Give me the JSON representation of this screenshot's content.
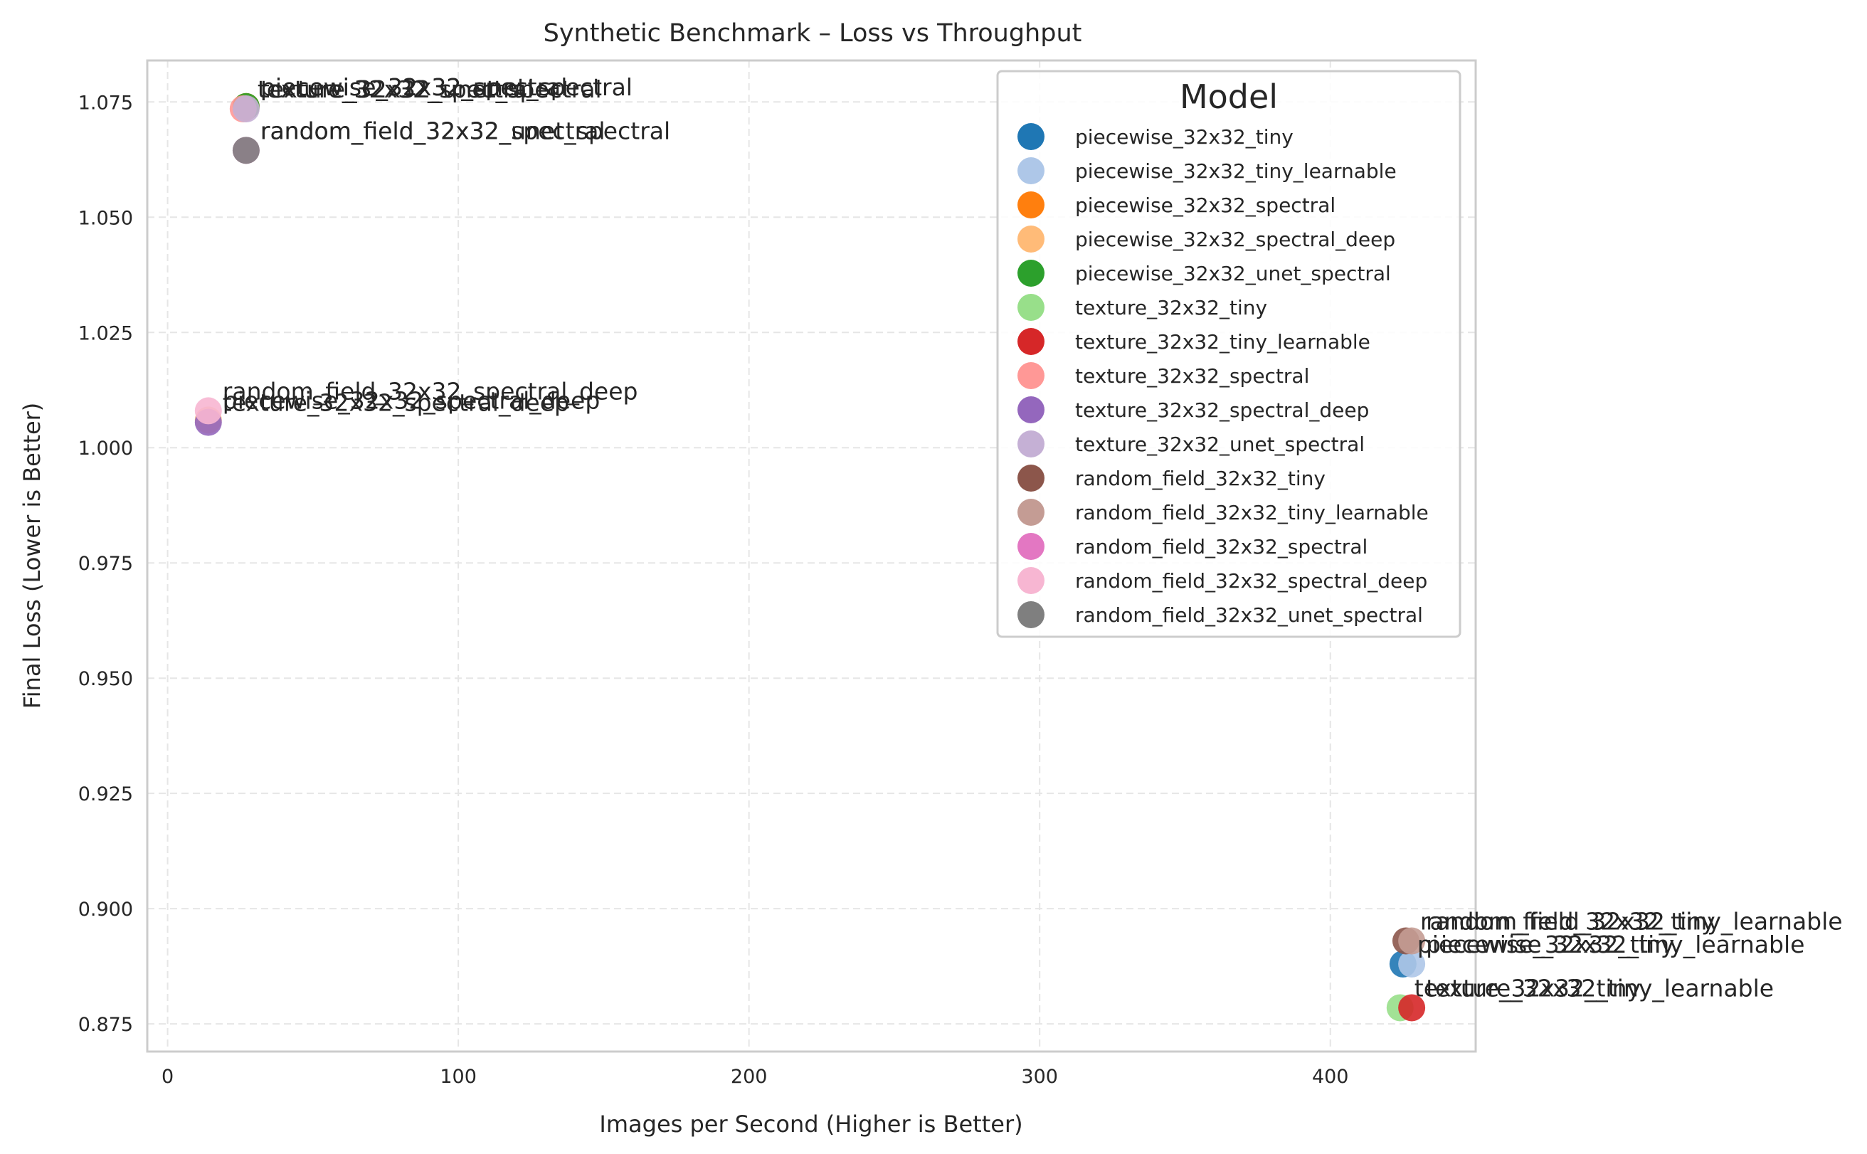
{
  "chart_data": {
    "type": "scatter",
    "title": "Synthetic Benchmark – Loss vs Throughput",
    "xlabel": "Images per Second (Higher is Better)",
    "ylabel": "Final Loss (Lower is Better)",
    "xlim": [
      -7,
      450
    ],
    "ylim": [
      0.869,
      1.084
    ],
    "xticks": [
      0,
      100,
      200,
      300,
      400
    ],
    "yticks": [
      0.875,
      0.9,
      0.925,
      0.95,
      0.975,
      1.0,
      1.025,
      1.05,
      1.075
    ],
    "ytick_labels": [
      "0.875",
      "0.900",
      "0.925",
      "0.950",
      "0.975",
      "1.000",
      "1.025",
      "1.050",
      "1.075"
    ],
    "grid": true,
    "legend": {
      "title": "Model",
      "placement": "top-right"
    },
    "series": [
      {
        "name": "piecewise_32x32_tiny",
        "color": "#1f77b4",
        "x": 425,
        "y": 0.888
      },
      {
        "name": "piecewise_32x32_tiny_learnable",
        "color": "#aec7e8",
        "x": 428,
        "y": 0.888
      },
      {
        "name": "piecewise_32x32_spectral",
        "color": "#ff7f0e",
        "x": 27,
        "y": 1.074
      },
      {
        "name": "piecewise_32x32_spectral_deep",
        "color": "#ffbb78",
        "x": 14,
        "y": 1.006
      },
      {
        "name": "piecewise_32x32_unet_spectral",
        "color": "#2ca02c",
        "x": 27,
        "y": 1.074
      },
      {
        "name": "texture_32x32_tiny",
        "color": "#98df8a",
        "x": 424,
        "y": 0.8785
      },
      {
        "name": "texture_32x32_tiny_learnable",
        "color": "#d62728",
        "x": 428,
        "y": 0.8785
      },
      {
        "name": "texture_32x32_spectral",
        "color": "#ff9896",
        "x": 26,
        "y": 1.0735
      },
      {
        "name": "texture_32x32_spectral_deep",
        "color": "#9467bd",
        "x": 14,
        "y": 1.0055
      },
      {
        "name": "texture_32x32_unet_spectral",
        "color": "#c5b0d5",
        "x": 27,
        "y": 1.0735
      },
      {
        "name": "random_field_32x32_tiny",
        "color": "#8c564b",
        "x": 426,
        "y": 0.893
      },
      {
        "name": "random_field_32x32_tiny_learnable",
        "color": "#c49c94",
        "x": 428,
        "y": 0.893
      },
      {
        "name": "random_field_32x32_spectral",
        "color": "#e377c2",
        "x": 27,
        "y": 1.0645
      },
      {
        "name": "random_field_32x32_spectral_deep",
        "color": "#f7b6d2",
        "x": 14,
        "y": 1.008
      },
      {
        "name": "random_field_32x32_unet_spectral",
        "color": "#7f7f7f",
        "x": 27,
        "y": 1.0645
      }
    ]
  }
}
